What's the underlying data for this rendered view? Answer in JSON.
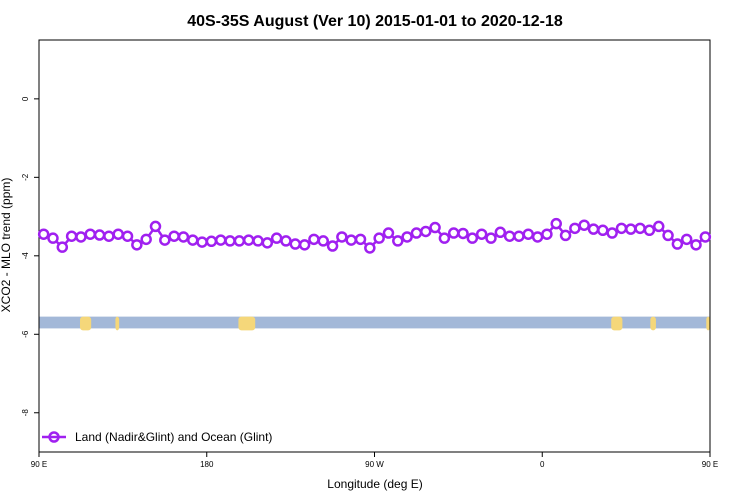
{
  "chart_data": {
    "type": "line",
    "title": "40S-35S August (Ver 10)   2015-01-01 to 2020-12-18",
    "xlabel": "Longitude (deg E)",
    "ylabel": "XCO2 - MLO trend (ppm)",
    "xlim": [
      90,
      450
    ],
    "ylim": [
      -9,
      1.5
    ],
    "x_ticks": [
      {
        "value": 90,
        "label": "90 E"
      },
      {
        "value": 180,
        "label": "180"
      },
      {
        "value": 270,
        "label": "90 W"
      },
      {
        "value": 360,
        "label": "0"
      },
      {
        "value": 450,
        "label": "90 E"
      },
      {
        "value": 540,
        "label": "180"
      }
    ],
    "y_ticks": [
      {
        "value": 0,
        "label": "0"
      },
      {
        "value": -2,
        "label": "-2"
      },
      {
        "value": -4,
        "label": "-4"
      },
      {
        "value": -6,
        "label": "-6"
      },
      {
        "value": -8,
        "label": "-8"
      }
    ],
    "series": [
      {
        "name": "Land (Nadir&Glint) and Ocean (Glint)",
        "color": "#a020f0",
        "x": [
          92.5,
          97.5,
          102.5,
          107.5,
          112.5,
          117.5,
          122.5,
          127.5,
          132.5,
          137.5,
          142.5,
          147.5,
          152.5,
          157.5,
          162.5,
          167.5,
          172.5,
          177.5,
          182.5,
          187.5,
          192.5,
          197.5,
          202.5,
          207.5,
          212.5,
          217.5,
          222.5,
          227.5,
          232.5,
          237.5,
          242.5,
          247.5,
          252.5,
          257.5,
          262.5,
          267.5,
          272.5,
          277.5,
          282.5,
          287.5,
          292.5,
          297.5,
          302.5,
          307.5,
          312.5,
          317.5,
          322.5,
          327.5,
          332.5,
          337.5,
          342.5,
          347.5,
          352.5,
          357.5,
          362.5,
          367.5,
          372.5,
          377.5,
          382.5,
          387.5,
          392.5,
          397.5,
          402.5,
          407.5,
          412.5,
          417.5,
          422.5,
          427.5,
          432.5,
          437.5,
          442.5,
          447.5
        ],
        "y": [
          -3.45,
          -3.55,
          -3.78,
          -3.5,
          -3.52,
          -3.45,
          -3.47,
          -3.5,
          -3.45,
          -3.5,
          -3.72,
          -3.58,
          -3.25,
          -3.6,
          -3.5,
          -3.52,
          -3.6,
          -3.65,
          -3.63,
          -3.6,
          -3.62,
          -3.62,
          -3.6,
          -3.62,
          -3.67,
          -3.55,
          -3.62,
          -3.7,
          -3.72,
          -3.58,
          -3.62,
          -3.75,
          -3.52,
          -3.6,
          -3.58,
          -3.8,
          -3.55,
          -3.42,
          -3.62,
          -3.52,
          -3.42,
          -3.38,
          -3.28,
          -3.55,
          -3.42,
          -3.43,
          -3.55,
          -3.45,
          -3.55,
          -3.4,
          -3.5,
          -3.5,
          -3.45,
          -3.52,
          -3.45,
          -3.18,
          -3.48,
          -3.3,
          -3.22,
          -3.32,
          -3.35,
          -3.42,
          -3.3,
          -3.32,
          -3.3,
          -3.35,
          -3.25,
          -3.48,
          -3.7,
          -3.58,
          -3.72,
          -3.52
        ]
      }
    ],
    "legend": {
      "placement": "bottom-left"
    },
    "grid": false,
    "colors": {
      "line": "#a020f0",
      "ocean_strip": "#a3b8d8",
      "land_strip": "#f5d77a",
      "axis": "#000000"
    },
    "land_ocean_strip": {
      "y_top": -5.55,
      "y_bottom": -5.85,
      "land_regions": [
        [
          112,
          118
        ],
        [
          131,
          133
        ],
        [
          197,
          206
        ],
        [
          397,
          403
        ],
        [
          418,
          421
        ],
        [
          448,
          450
        ]
      ]
    }
  }
}
